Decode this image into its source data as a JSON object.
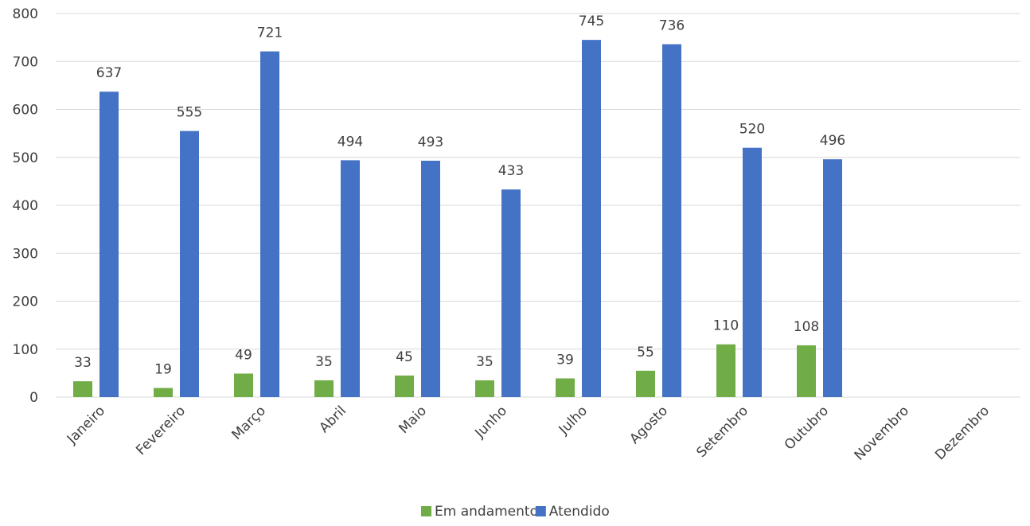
{
  "chart_data": {
    "type": "bar",
    "categories": [
      "Janeiro",
      "Fevereiro",
      "Março",
      "Abril",
      "Maio",
      "Junho",
      "Julho",
      "Agosto",
      "Setembro",
      "Outubro",
      "Novembro",
      "Dezembro"
    ],
    "series": [
      {
        "name": "Em andamento",
        "color": "#70ad47",
        "values": [
          33,
          19,
          49,
          35,
          45,
          35,
          39,
          55,
          110,
          108,
          null,
          null
        ]
      },
      {
        "name": "Atendido",
        "color": "#4472c4",
        "values": [
          637,
          555,
          721,
          494,
          493,
          433,
          745,
          736,
          520,
          496,
          null,
          null
        ]
      }
    ],
    "yticks": [
      0,
      100,
      200,
      300,
      400,
      500,
      600,
      700,
      800
    ],
    "ylim": [
      0,
      800
    ],
    "grid": true,
    "legend_position": "bottom",
    "data_labels": true
  }
}
